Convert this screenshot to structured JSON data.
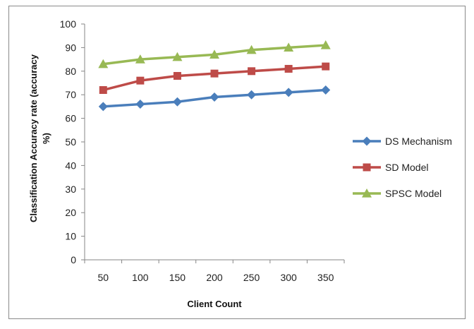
{
  "chart_data": {
    "type": "line",
    "title": "",
    "xlabel": "Client Count",
    "ylabel_line1": "Classification Accuracy rate (accuracy",
    "ylabel_line2": "%)",
    "categories": [
      "50",
      "100",
      "150",
      "200",
      "250",
      "300",
      "350"
    ],
    "ylim": [
      0,
      100
    ],
    "ytick_step": 10,
    "grid": false,
    "legend_position": "right",
    "series": [
      {
        "name": "DS Mechanism",
        "color": "#4a7ebb",
        "marker": "diamond",
        "values": [
          65,
          66,
          67,
          69,
          70,
          71,
          72
        ]
      },
      {
        "name": "SD Model",
        "color": "#be4b48",
        "marker": "square",
        "values": [
          72,
          76,
          78,
          79,
          80,
          81,
          82
        ]
      },
      {
        "name": "SPSC Model",
        "color": "#98b954",
        "marker": "triangle",
        "values": [
          83,
          85,
          86,
          87,
          89,
          90,
          91
        ]
      }
    ]
  }
}
